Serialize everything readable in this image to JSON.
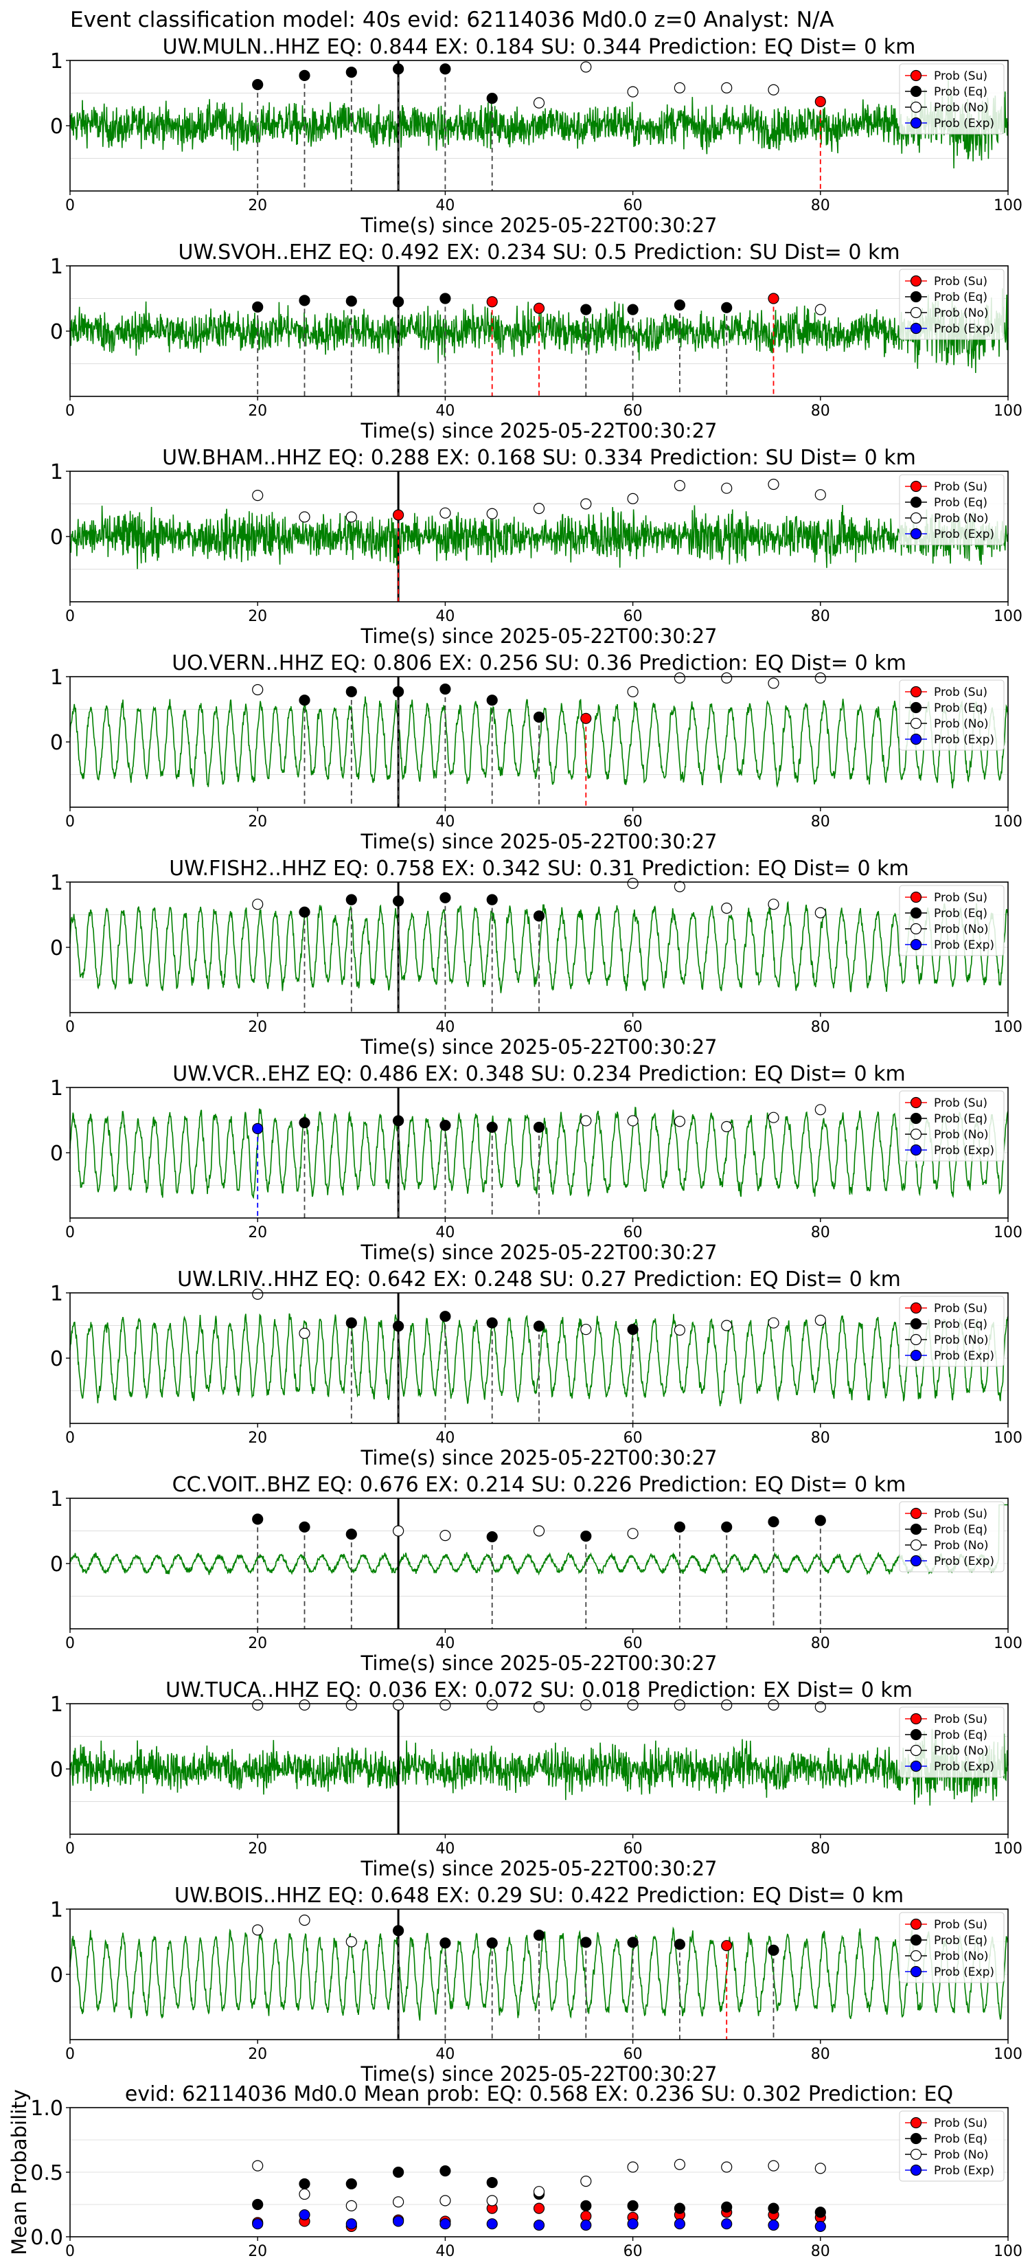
{
  "suptitle": "Event classification model: 40s evid: 62114036 Md0.0 z=0 Analyst: N/A",
  "colors": {
    "waveform": "#008000",
    "su": "#ff0000",
    "eq": "#000000",
    "no": "#ffffff",
    "exp": "#0000ff"
  },
  "legend": [
    "Prob (Su)",
    "Prob (Eq)",
    "Prob (No)",
    "Prob (Exp)"
  ],
  "chart_data": [
    {
      "type": "line",
      "station": "UW.MULN..HHZ",
      "title": "UW.MULN..HHZ   EQ: 0.844  EX: 0.184  SU: 0.344   Prediction: EQ    Dist= 0 km",
      "xlabel": "Time(s) since 2025-05-22T00:30:27",
      "xlim": [
        0,
        100
      ],
      "ylim": [
        -1,
        1
      ],
      "xticks": [
        "0",
        "20",
        "40",
        "60",
        "80",
        "100"
      ],
      "yticks": [
        "1",
        "0"
      ],
      "pick_time": 35,
      "points": [
        {
          "t": 20,
          "prob": 0.63,
          "class": "eq"
        },
        {
          "t": 25,
          "prob": 0.77,
          "class": "eq"
        },
        {
          "t": 30,
          "prob": 0.82,
          "class": "eq"
        },
        {
          "t": 35,
          "prob": 0.87,
          "class": "eq"
        },
        {
          "t": 40,
          "prob": 0.87,
          "class": "eq"
        },
        {
          "t": 45,
          "prob": 0.42,
          "class": "eq"
        },
        {
          "t": 50,
          "prob": 0.35,
          "class": "no"
        },
        {
          "t": 55,
          "prob": 0.9,
          "class": "no"
        },
        {
          "t": 60,
          "prob": 0.52,
          "class": "no"
        },
        {
          "t": 65,
          "prob": 0.58,
          "class": "no"
        },
        {
          "t": 70,
          "prob": 0.58,
          "class": "no"
        },
        {
          "t": 75,
          "prob": 0.55,
          "class": "no"
        },
        {
          "t": 80,
          "prob": 0.37,
          "class": "su"
        }
      ]
    },
    {
      "type": "line",
      "station": "UW.SVOH..EHZ",
      "title": "UW.SVOH..EHZ   EQ: 0.492  EX: 0.234  SU: 0.5   Prediction: SU    Dist= 0 km",
      "xlabel": "Time(s) since 2025-05-22T00:30:27",
      "xlim": [
        0,
        100
      ],
      "ylim": [
        -1,
        1
      ],
      "xticks": [
        "0",
        "20",
        "40",
        "60",
        "80",
        "100"
      ],
      "yticks": [
        "1",
        "0"
      ],
      "pick_time": 35,
      "points": [
        {
          "t": 20,
          "prob": 0.37,
          "class": "eq"
        },
        {
          "t": 25,
          "prob": 0.47,
          "class": "eq"
        },
        {
          "t": 30,
          "prob": 0.46,
          "class": "eq"
        },
        {
          "t": 35,
          "prob": 0.45,
          "class": "eq"
        },
        {
          "t": 40,
          "prob": 0.5,
          "class": "eq"
        },
        {
          "t": 45,
          "prob": 0.45,
          "class": "su"
        },
        {
          "t": 50,
          "prob": 0.35,
          "class": "su"
        },
        {
          "t": 55,
          "prob": 0.33,
          "class": "eq"
        },
        {
          "t": 60,
          "prob": 0.33,
          "class": "eq"
        },
        {
          "t": 65,
          "prob": 0.4,
          "class": "eq"
        },
        {
          "t": 70,
          "prob": 0.36,
          "class": "eq"
        },
        {
          "t": 75,
          "prob": 0.5,
          "class": "su"
        },
        {
          "t": 80,
          "prob": 0.33,
          "class": "no"
        }
      ]
    },
    {
      "type": "line",
      "station": "UW.BHAM..HHZ",
      "title": "UW.BHAM..HHZ   EQ: 0.288  EX: 0.168  SU: 0.334   Prediction: SU    Dist= 0 km",
      "xlabel": "Time(s) since 2025-05-22T00:30:27",
      "xlim": [
        0,
        100
      ],
      "ylim": [
        -1,
        1
      ],
      "xticks": [
        "0",
        "20",
        "40",
        "60",
        "80",
        "100"
      ],
      "yticks": [
        "1",
        "0"
      ],
      "pick_time": 35,
      "points": [
        {
          "t": 20,
          "prob": 0.63,
          "class": "no"
        },
        {
          "t": 25,
          "prob": 0.3,
          "class": "no"
        },
        {
          "t": 30,
          "prob": 0.3,
          "class": "no"
        },
        {
          "t": 35,
          "prob": 0.33,
          "class": "su"
        },
        {
          "t": 40,
          "prob": 0.36,
          "class": "no"
        },
        {
          "t": 45,
          "prob": 0.35,
          "class": "no"
        },
        {
          "t": 50,
          "prob": 0.43,
          "class": "no"
        },
        {
          "t": 55,
          "prob": 0.5,
          "class": "no"
        },
        {
          "t": 60,
          "prob": 0.58,
          "class": "no"
        },
        {
          "t": 65,
          "prob": 0.78,
          "class": "no"
        },
        {
          "t": 70,
          "prob": 0.74,
          "class": "no"
        },
        {
          "t": 75,
          "prob": 0.8,
          "class": "no"
        },
        {
          "t": 80,
          "prob": 0.64,
          "class": "no"
        }
      ]
    },
    {
      "type": "line",
      "station": "UO.VERN..HHZ",
      "title": "UO.VERN..HHZ   EQ: 0.806  EX: 0.256  SU: 0.36   Prediction: EQ    Dist= 0 km",
      "xlabel": "Time(s) since 2025-05-22T00:30:27",
      "xlim": [
        0,
        100
      ],
      "ylim": [
        -1,
        1
      ],
      "xticks": [
        "0",
        "20",
        "40",
        "60",
        "80",
        "100"
      ],
      "yticks": [
        "1",
        "0"
      ],
      "pick_time": 35,
      "points": [
        {
          "t": 20,
          "prob": 0.8,
          "class": "no"
        },
        {
          "t": 25,
          "prob": 0.64,
          "class": "eq"
        },
        {
          "t": 30,
          "prob": 0.77,
          "class": "eq"
        },
        {
          "t": 35,
          "prob": 0.77,
          "class": "eq"
        },
        {
          "t": 40,
          "prob": 0.81,
          "class": "eq"
        },
        {
          "t": 45,
          "prob": 0.64,
          "class": "eq"
        },
        {
          "t": 50,
          "prob": 0.38,
          "class": "eq"
        },
        {
          "t": 55,
          "prob": 0.36,
          "class": "su"
        },
        {
          "t": 60,
          "prob": 0.77,
          "class": "no"
        },
        {
          "t": 65,
          "prob": 0.98,
          "class": "no"
        },
        {
          "t": 70,
          "prob": 0.98,
          "class": "no"
        },
        {
          "t": 75,
          "prob": 0.9,
          "class": "no"
        },
        {
          "t": 80,
          "prob": 0.98,
          "class": "no"
        }
      ]
    },
    {
      "type": "line",
      "station": "UW.FISH2..HHZ",
      "title": "UW.FISH2..HHZ   EQ: 0.758  EX: 0.342  SU: 0.31   Prediction: EQ    Dist= 0 km",
      "xlabel": "Time(s) since 2025-05-22T00:30:27",
      "xlim": [
        0,
        100
      ],
      "ylim": [
        -1,
        1
      ],
      "xticks": [
        "0",
        "20",
        "40",
        "60",
        "80",
        "100"
      ],
      "yticks": [
        "1",
        "0"
      ],
      "pick_time": 35,
      "points": [
        {
          "t": 20,
          "prob": 0.66,
          "class": "no"
        },
        {
          "t": 25,
          "prob": 0.54,
          "class": "eq"
        },
        {
          "t": 30,
          "prob": 0.73,
          "class": "eq"
        },
        {
          "t": 35,
          "prob": 0.71,
          "class": "eq"
        },
        {
          "t": 40,
          "prob": 0.76,
          "class": "eq"
        },
        {
          "t": 45,
          "prob": 0.73,
          "class": "eq"
        },
        {
          "t": 50,
          "prob": 0.48,
          "class": "eq"
        },
        {
          "t": 60,
          "prob": 0.98,
          "class": "no"
        },
        {
          "t": 65,
          "prob": 0.93,
          "class": "no"
        },
        {
          "t": 70,
          "prob": 0.6,
          "class": "no"
        },
        {
          "t": 75,
          "prob": 0.66,
          "class": "no"
        },
        {
          "t": 80,
          "prob": 0.53,
          "class": "no"
        }
      ]
    },
    {
      "type": "line",
      "station": "UW.VCR..EHZ",
      "title": "UW.VCR..EHZ   EQ: 0.486  EX: 0.348  SU: 0.234   Prediction: EQ    Dist= 0 km",
      "xlabel": "Time(s) since 2025-05-22T00:30:27",
      "xlim": [
        0,
        100
      ],
      "ylim": [
        -1,
        1
      ],
      "xticks": [
        "0",
        "20",
        "40",
        "60",
        "80",
        "100"
      ],
      "yticks": [
        "1",
        "0"
      ],
      "pick_time": 35,
      "points": [
        {
          "t": 20,
          "prob": 0.37,
          "class": "exp"
        },
        {
          "t": 25,
          "prob": 0.46,
          "class": "eq"
        },
        {
          "t": 35,
          "prob": 0.49,
          "class": "eq"
        },
        {
          "t": 40,
          "prob": 0.42,
          "class": "eq"
        },
        {
          "t": 45,
          "prob": 0.39,
          "class": "eq"
        },
        {
          "t": 50,
          "prob": 0.39,
          "class": "eq"
        },
        {
          "t": 55,
          "prob": 0.49,
          "class": "no"
        },
        {
          "t": 60,
          "prob": 0.49,
          "class": "no"
        },
        {
          "t": 65,
          "prob": 0.48,
          "class": "no"
        },
        {
          "t": 70,
          "prob": 0.4,
          "class": "no"
        },
        {
          "t": 75,
          "prob": 0.54,
          "class": "no"
        },
        {
          "t": 80,
          "prob": 0.66,
          "class": "no"
        }
      ]
    },
    {
      "type": "line",
      "station": "UW.LRIV..HHZ",
      "title": "UW.LRIV..HHZ   EQ: 0.642  EX: 0.248  SU: 0.27   Prediction: EQ    Dist= 0 km",
      "xlabel": "Time(s) since 2025-05-22T00:30:27",
      "xlim": [
        0,
        100
      ],
      "ylim": [
        -1,
        1
      ],
      "xticks": [
        "0",
        "20",
        "40",
        "60",
        "80",
        "100"
      ],
      "yticks": [
        "1",
        "0"
      ],
      "pick_time": 35,
      "points": [
        {
          "t": 20,
          "prob": 0.98,
          "class": "no"
        },
        {
          "t": 25,
          "prob": 0.38,
          "class": "no"
        },
        {
          "t": 30,
          "prob": 0.54,
          "class": "eq"
        },
        {
          "t": 35,
          "prob": 0.49,
          "class": "eq"
        },
        {
          "t": 40,
          "prob": 0.64,
          "class": "eq"
        },
        {
          "t": 45,
          "prob": 0.54,
          "class": "eq"
        },
        {
          "t": 50,
          "prob": 0.49,
          "class": "eq"
        },
        {
          "t": 55,
          "prob": 0.44,
          "class": "no"
        },
        {
          "t": 60,
          "prob": 0.44,
          "class": "eq"
        },
        {
          "t": 65,
          "prob": 0.43,
          "class": "no"
        },
        {
          "t": 70,
          "prob": 0.5,
          "class": "no"
        },
        {
          "t": 75,
          "prob": 0.54,
          "class": "no"
        },
        {
          "t": 80,
          "prob": 0.58,
          "class": "no"
        }
      ]
    },
    {
      "type": "line",
      "station": "CC.VOIT..BHZ",
      "title": "CC.VOIT..BHZ   EQ: 0.676  EX: 0.214  SU: 0.226   Prediction: EQ    Dist= 0 km",
      "xlabel": "Time(s) since 2025-05-22T00:30:27",
      "xlim": [
        0,
        100
      ],
      "ylim": [
        -1,
        1
      ],
      "xticks": [
        "0",
        "20",
        "40",
        "60",
        "80",
        "100"
      ],
      "yticks": [
        "1",
        "0"
      ],
      "pick_time": 35,
      "points": [
        {
          "t": 20,
          "prob": 0.68,
          "class": "eq"
        },
        {
          "t": 25,
          "prob": 0.56,
          "class": "eq"
        },
        {
          "t": 30,
          "prob": 0.45,
          "class": "eq"
        },
        {
          "t": 35,
          "prob": 0.5,
          "class": "no"
        },
        {
          "t": 40,
          "prob": 0.43,
          "class": "no"
        },
        {
          "t": 45,
          "prob": 0.41,
          "class": "eq"
        },
        {
          "t": 50,
          "prob": 0.5,
          "class": "no"
        },
        {
          "t": 55,
          "prob": 0.42,
          "class": "eq"
        },
        {
          "t": 60,
          "prob": 0.46,
          "class": "no"
        },
        {
          "t": 65,
          "prob": 0.56,
          "class": "eq"
        },
        {
          "t": 70,
          "prob": 0.56,
          "class": "eq"
        },
        {
          "t": 75,
          "prob": 0.64,
          "class": "eq"
        },
        {
          "t": 80,
          "prob": 0.66,
          "class": "eq"
        }
      ]
    },
    {
      "type": "line",
      "station": "UW.TUCA..HHZ",
      "title": "UW.TUCA..HHZ   EQ: 0.036  EX: 0.072  SU: 0.018   Prediction: EX    Dist= 0 km",
      "xlabel": "Time(s) since 2025-05-22T00:30:27",
      "xlim": [
        0,
        100
      ],
      "ylim": [
        -1,
        1
      ],
      "xticks": [
        "0",
        "20",
        "40",
        "60",
        "80",
        "100"
      ],
      "yticks": [
        "1",
        "0"
      ],
      "pick_time": 35,
      "points": [
        {
          "t": 20,
          "prob": 0.98,
          "class": "no"
        },
        {
          "t": 25,
          "prob": 0.98,
          "class": "no"
        },
        {
          "t": 30,
          "prob": 0.98,
          "class": "no"
        },
        {
          "t": 35,
          "prob": 0.98,
          "class": "no"
        },
        {
          "t": 40,
          "prob": 0.98,
          "class": "no"
        },
        {
          "t": 45,
          "prob": 0.98,
          "class": "no"
        },
        {
          "t": 50,
          "prob": 0.95,
          "class": "no"
        },
        {
          "t": 55,
          "prob": 0.98,
          "class": "no"
        },
        {
          "t": 60,
          "prob": 0.98,
          "class": "no"
        },
        {
          "t": 65,
          "prob": 0.98,
          "class": "no"
        },
        {
          "t": 70,
          "prob": 0.98,
          "class": "no"
        },
        {
          "t": 75,
          "prob": 0.98,
          "class": "no"
        },
        {
          "t": 80,
          "prob": 0.95,
          "class": "no"
        }
      ]
    },
    {
      "type": "line",
      "station": "UW.BOIS..HHZ",
      "title": "UW.BOIS..HHZ   EQ: 0.648  EX: 0.29  SU: 0.422   Prediction: EQ    Dist= 0 km",
      "xlabel": "Time(s) since 2025-05-22T00:30:27",
      "xlim": [
        0,
        100
      ],
      "ylim": [
        -1,
        1
      ],
      "xticks": [
        "0",
        "20",
        "40",
        "60",
        "80",
        "100"
      ],
      "yticks": [
        "1",
        "0"
      ],
      "pick_time": 35,
      "points": [
        {
          "t": 20,
          "prob": 0.68,
          "class": "no"
        },
        {
          "t": 25,
          "prob": 0.83,
          "class": "no"
        },
        {
          "t": 30,
          "prob": 0.5,
          "class": "no"
        },
        {
          "t": 35,
          "prob": 0.67,
          "class": "eq"
        },
        {
          "t": 40,
          "prob": 0.48,
          "class": "eq"
        },
        {
          "t": 45,
          "prob": 0.48,
          "class": "eq"
        },
        {
          "t": 50,
          "prob": 0.6,
          "class": "eq"
        },
        {
          "t": 55,
          "prob": 0.49,
          "class": "eq"
        },
        {
          "t": 60,
          "prob": 0.49,
          "class": "eq"
        },
        {
          "t": 65,
          "prob": 0.46,
          "class": "eq"
        },
        {
          "t": 70,
          "prob": 0.44,
          "class": "su"
        },
        {
          "t": 75,
          "prob": 0.37,
          "class": "eq"
        }
      ]
    },
    {
      "type": "scatter",
      "station": "mean",
      "title": "evid: 62114036  Md0.0   Mean prob:   EQ: 0.568  EX: 0.236  SU: 0.302   Prediction: EQ",
      "ylabel": "Mean Probability",
      "xlim": [
        0,
        100
      ],
      "ylim": [
        0,
        1
      ],
      "xticks": [
        "0",
        "20",
        "40",
        "60",
        "80",
        "100"
      ],
      "yticks": [
        "1.0",
        "0.5",
        "0.0"
      ],
      "x": [
        20,
        25,
        30,
        35,
        40,
        45,
        50,
        55,
        60,
        65,
        70,
        75,
        80
      ],
      "series": [
        {
          "name": "Prob (Su)",
          "class": "su",
          "values": [
            0.11,
            0.12,
            0.08,
            0.13,
            0.12,
            0.22,
            0.22,
            0.16,
            0.15,
            0.17,
            0.19,
            0.17,
            0.15
          ]
        },
        {
          "name": "Prob (Eq)",
          "class": "eq",
          "values": [
            0.25,
            0.41,
            0.41,
            0.5,
            0.51,
            0.42,
            0.33,
            0.24,
            0.24,
            0.22,
            0.23,
            0.22,
            0.19
          ]
        },
        {
          "name": "Prob (No)",
          "class": "no",
          "values": [
            0.55,
            0.33,
            0.24,
            0.27,
            0.28,
            0.28,
            0.35,
            0.43,
            0.54,
            0.56,
            0.54,
            0.55,
            0.53
          ]
        },
        {
          "name": "Prob (Exp)",
          "class": "exp",
          "values": [
            0.1,
            0.17,
            0.1,
            0.12,
            0.1,
            0.1,
            0.09,
            0.09,
            0.1,
            0.1,
            0.1,
            0.09,
            0.08
          ]
        }
      ]
    }
  ]
}
